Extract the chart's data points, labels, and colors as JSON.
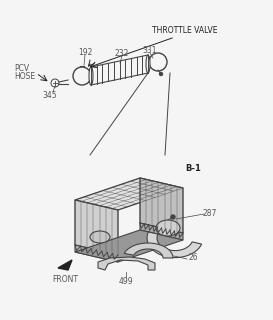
{
  "background_color": "#f0f0f0",
  "colors": {
    "lines": "#444444",
    "text": "#555555",
    "dark": "#222222",
    "face_light": "#e8e8e8",
    "face_mid": "#d0d0d0",
    "face_dark": "#b8b8b8",
    "white": "#f5f5f5"
  },
  "labels": {
    "pcv_hose": "PCV\nHOSE",
    "throttle_valve": "THROTTLE VALVE",
    "b1": "B-1",
    "front": "FRONT",
    "num_192": "192",
    "num_232": "232",
    "num_331": "331",
    "num_345": "345",
    "num_287": "287",
    "num_26": "26",
    "num_499": "499"
  }
}
